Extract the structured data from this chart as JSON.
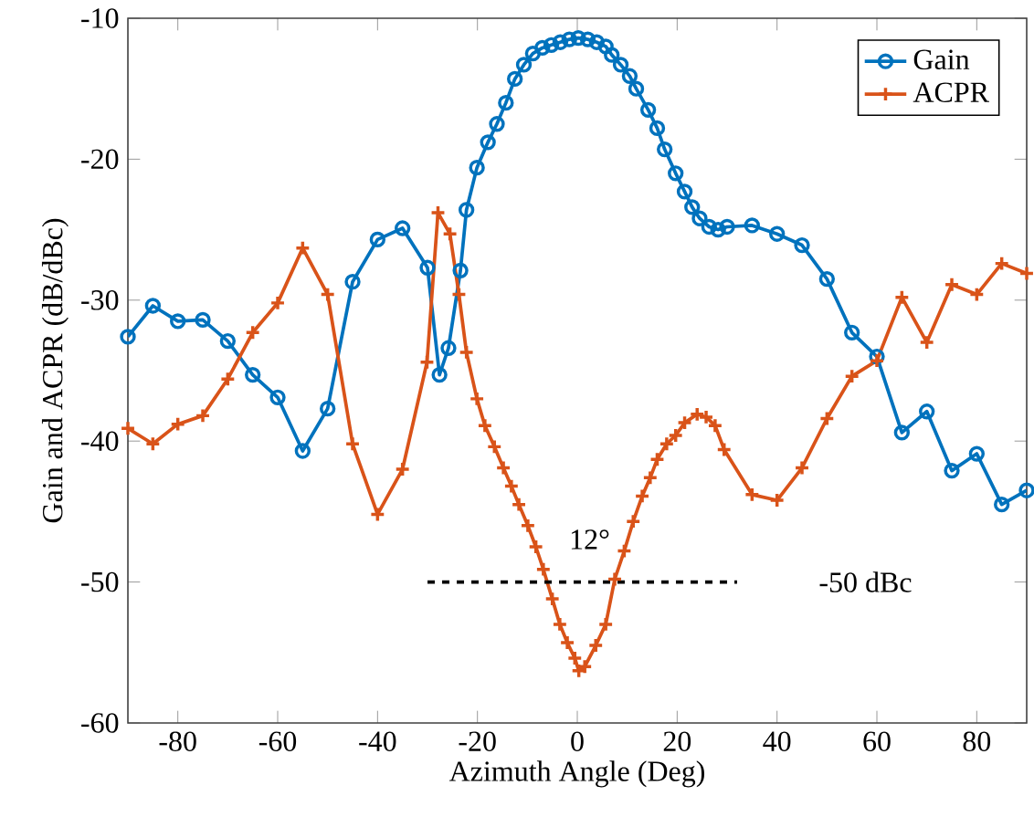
{
  "chart_data": {
    "type": "line",
    "xlabel": "Azimuth Angle (Deg)",
    "ylabel": "Gain and ACPR (dB/dBc)",
    "xlim": [
      -90,
      90
    ],
    "ylim": [
      -60,
      -10
    ],
    "xticks": [
      -80,
      -60,
      -40,
      -20,
      0,
      20,
      40,
      60,
      80
    ],
    "yticks": [
      -60,
      -50,
      -40,
      -30,
      -20,
      -10
    ],
    "legend": "top right",
    "line_style": "solid",
    "series": [
      {
        "name": "Gain",
        "color": "#0072bd",
        "marker": "circle",
        "x": [
          -90,
          -85,
          -80,
          -75,
          -70,
          -65,
          -60,
          -55,
          -50,
          -45,
          -40,
          -35,
          -30,
          -27.6,
          -25.8,
          -23.4,
          -22.2,
          -20.1,
          -17.9,
          -16.1,
          -14.3,
          -12.5,
          -10.7,
          -8.9,
          -7,
          -5.2,
          -3.4,
          -1.6,
          0.2,
          2.1,
          3.9,
          5.7,
          6.9,
          8.7,
          10.5,
          11.8,
          14.2,
          16,
          17.5,
          19.7,
          21.5,
          23,
          24.5,
          26.4,
          28.2,
          30,
          35,
          40,
          45,
          50,
          55,
          60,
          65,
          70,
          75,
          80,
          85,
          90
        ],
        "values": [
          -32.6,
          -30.4,
          -31.5,
          -31.4,
          -32.9,
          -35.3,
          -36.9,
          -40.7,
          -37.7,
          -28.7,
          -25.7,
          -24.9,
          -27.7,
          -35.3,
          -33.4,
          -27.9,
          -23.6,
          -20.6,
          -18.8,
          -17.5,
          -16,
          -14.3,
          -13.3,
          -12.5,
          -12.1,
          -11.9,
          -11.7,
          -11.5,
          -11.4,
          -11.5,
          -11.7,
          -12,
          -12.6,
          -13.3,
          -14.1,
          -15,
          -16.5,
          -17.8,
          -19.3,
          -21,
          -22.3,
          -23.4,
          -24.2,
          -24.8,
          -25,
          -24.8,
          -24.7,
          -25.3,
          -26.1,
          -28.5,
          -32.3,
          -34,
          -39.4,
          -37.9,
          -42.1,
          -40.9,
          -44.5,
          -43.5
        ]
      },
      {
        "name": "ACPR",
        "color": "#d95319",
        "marker": "cross",
        "x": [
          -90,
          -85,
          -80,
          -75,
          -70,
          -65,
          -60,
          -55,
          -50,
          -45,
          -40,
          -35,
          -30.1,
          -27.9,
          -25.5,
          -23.7,
          -22.2,
          -20.1,
          -18.5,
          -16.6,
          -14.8,
          -13.2,
          -11.7,
          -9.9,
          -8.3,
          -6.8,
          -5,
          -3.5,
          -2,
          -0.5,
          0.3,
          1.5,
          3.7,
          5.7,
          7.5,
          9.4,
          11.2,
          13,
          14.6,
          16,
          17.9,
          19.7,
          21.5,
          24,
          25.8,
          27.6,
          29.4,
          35,
          40,
          45,
          50,
          55,
          60,
          65,
          70,
          75,
          80,
          85,
          90
        ],
        "values": [
          -39.1,
          -40.2,
          -38.8,
          -38.2,
          -35.6,
          -32.3,
          -30.2,
          -26.3,
          -29.6,
          -40.2,
          -45.2,
          -42,
          -34.4,
          -23.8,
          -25.3,
          -29.6,
          -33.7,
          -37,
          -38.9,
          -40.4,
          -41.9,
          -43.2,
          -44.5,
          -46,
          -47.5,
          -49.1,
          -51.2,
          -53,
          -54.3,
          -55.4,
          -56.3,
          -56,
          -54.5,
          -53,
          -49.8,
          -47.8,
          -45.7,
          -43.9,
          -42.6,
          -41.3,
          -40.2,
          -39.6,
          -38.7,
          -38.1,
          -38.3,
          -38.9,
          -40.6,
          -43.8,
          -44.2,
          -41.9,
          -38.4,
          -35.4,
          -34.3,
          -29.8,
          -33,
          -28.9,
          -29.6,
          -27.4,
          -28.1
        ]
      },
      {
        "color": "#000000",
        "marker": "none",
        "line_style": "dashed",
        "x": [
          -30,
          32
        ],
        "values": [
          -50,
          -50
        ]
      }
    ],
    "annotations": [
      "12°",
      "-50 dBc"
    ]
  }
}
